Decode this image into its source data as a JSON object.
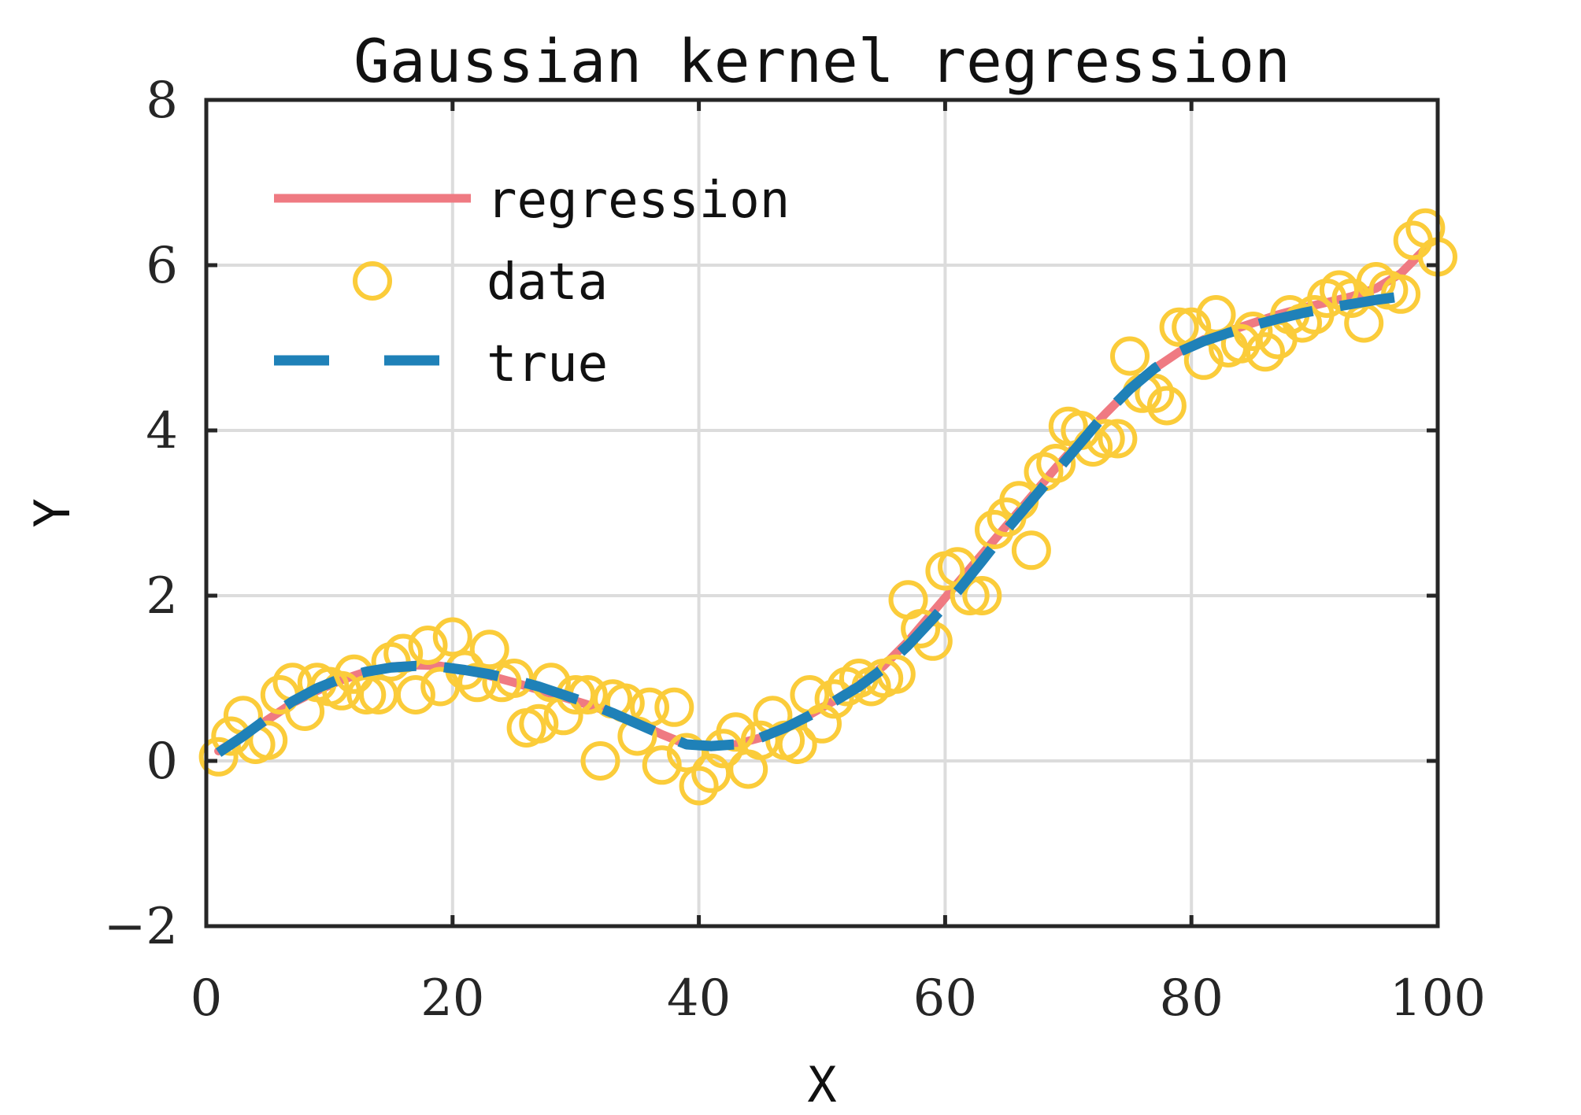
{
  "chart_data": {
    "type": "line",
    "title": "Gaussian kernel regression",
    "xlabel": "X",
    "ylabel": "Y",
    "xlim": [
      0,
      100
    ],
    "ylim": [
      -2,
      8
    ],
    "xticks": [
      0,
      20,
      40,
      60,
      80,
      100
    ],
    "yticks": [
      -2,
      0,
      2,
      4,
      6,
      8
    ],
    "x_tick_labels": [
      "0",
      "20",
      "40",
      "60",
      "80",
      "100"
    ],
    "y_tick_labels": [
      "−2",
      "0",
      "2",
      "4",
      "6",
      "8"
    ],
    "grid": true,
    "legend_position": "top-left",
    "series": [
      {
        "name": "regression",
        "style": "solid line",
        "color": "#ef7a82",
        "x": [
          1,
          3,
          5,
          7,
          9,
          11,
          13,
          15,
          17,
          19,
          21,
          23,
          25,
          27,
          29,
          31,
          33,
          35,
          37,
          39,
          41,
          43,
          45,
          47,
          49,
          51,
          53,
          55,
          57,
          59,
          61,
          63,
          65,
          67,
          69,
          71,
          73,
          75,
          77,
          79,
          81,
          83,
          85,
          87,
          89,
          91,
          93,
          95,
          97,
          99
        ],
        "y": [
          0.12,
          0.3,
          0.5,
          0.7,
          0.85,
          0.98,
          1.08,
          1.14,
          1.16,
          1.15,
          1.1,
          1.03,
          0.95,
          0.86,
          0.77,
          0.68,
          0.58,
          0.46,
          0.32,
          0.2,
          0.17,
          0.2,
          0.28,
          0.4,
          0.56,
          0.73,
          0.92,
          1.15,
          1.45,
          1.8,
          2.15,
          2.5,
          2.85,
          3.2,
          3.55,
          3.88,
          4.2,
          4.5,
          4.75,
          4.95,
          5.1,
          5.2,
          5.3,
          5.4,
          5.48,
          5.55,
          5.62,
          5.72,
          5.9,
          6.2
        ]
      },
      {
        "name": "data",
        "style": "open circle markers",
        "color": "#fbcc3a",
        "x": [
          1,
          2,
          3,
          4,
          5,
          6,
          7,
          8,
          9,
          10,
          11,
          12,
          13,
          14,
          15,
          16,
          17,
          18,
          19,
          20,
          21,
          22,
          23,
          24,
          25,
          26,
          27,
          28,
          29,
          30,
          31,
          32,
          33,
          34,
          35,
          36,
          37,
          38,
          39,
          40,
          41,
          42,
          43,
          44,
          45,
          46,
          47,
          48,
          49,
          50,
          51,
          52,
          53,
          54,
          55,
          56,
          57,
          58,
          59,
          60,
          61,
          62,
          63,
          64,
          65,
          66,
          67,
          68,
          69,
          70,
          71,
          72,
          73,
          74,
          75,
          76,
          77,
          78,
          79,
          80,
          81,
          82,
          83,
          84,
          85,
          86,
          87,
          88,
          89,
          90,
          91,
          92,
          93,
          94,
          95,
          96,
          97,
          98,
          99,
          100
        ],
        "y": [
          0.05,
          0.3,
          0.55,
          0.2,
          0.25,
          0.8,
          0.95,
          0.6,
          0.95,
          0.9,
          0.85,
          1.05,
          0.8,
          0.8,
          1.2,
          1.3,
          0.8,
          1.4,
          0.9,
          1.5,
          1.1,
          0.95,
          1.35,
          0.95,
          1.0,
          0.4,
          0.45,
          0.95,
          0.55,
          0.8,
          0.8,
          0.0,
          0.75,
          0.7,
          0.3,
          0.65,
          -0.05,
          0.65,
          0.1,
          -0.3,
          -0.15,
          0.15,
          0.35,
          -0.1,
          0.25,
          0.55,
          0.25,
          0.2,
          0.8,
          0.45,
          0.75,
          0.9,
          1.0,
          0.9,
          1.0,
          1.05,
          1.95,
          1.6,
          1.45,
          2.3,
          2.35,
          2.0,
          2.0,
          2.8,
          2.95,
          3.15,
          2.55,
          3.5,
          3.6,
          4.05,
          4.0,
          3.8,
          3.9,
          3.9,
          4.9,
          4.45,
          4.45,
          4.3,
          5.25,
          5.25,
          4.85,
          5.4,
          5.0,
          5.05,
          5.2,
          4.95,
          5.1,
          5.4,
          5.3,
          5.4,
          5.6,
          5.7,
          5.6,
          5.3,
          5.8,
          5.7,
          5.65,
          6.3,
          6.45,
          6.1
        ]
      },
      {
        "name": "true",
        "style": "dashed line",
        "color": "#1f81b8",
        "x": [
          1,
          3,
          5,
          7,
          9,
          11,
          13,
          15,
          17,
          19,
          21,
          23,
          25,
          27,
          29,
          31,
          33,
          35,
          37,
          39,
          41,
          43,
          45,
          47,
          49,
          51,
          53,
          55,
          57,
          59,
          61,
          63,
          65,
          67,
          69,
          71,
          73,
          75,
          77,
          79,
          81,
          83,
          85,
          87,
          89,
          91,
          93,
          95,
          97
        ],
        "y": [
          0.1,
          0.3,
          0.52,
          0.72,
          0.88,
          1.0,
          1.08,
          1.13,
          1.15,
          1.14,
          1.1,
          1.05,
          0.98,
          0.9,
          0.8,
          0.7,
          0.58,
          0.45,
          0.32,
          0.2,
          0.18,
          0.2,
          0.28,
          0.4,
          0.55,
          0.72,
          0.9,
          1.12,
          1.4,
          1.72,
          2.05,
          2.42,
          2.8,
          3.15,
          3.5,
          3.85,
          4.2,
          4.5,
          4.75,
          4.95,
          5.08,
          5.18,
          5.27,
          5.35,
          5.42,
          5.48,
          5.53,
          5.58,
          5.62
        ]
      }
    ]
  }
}
